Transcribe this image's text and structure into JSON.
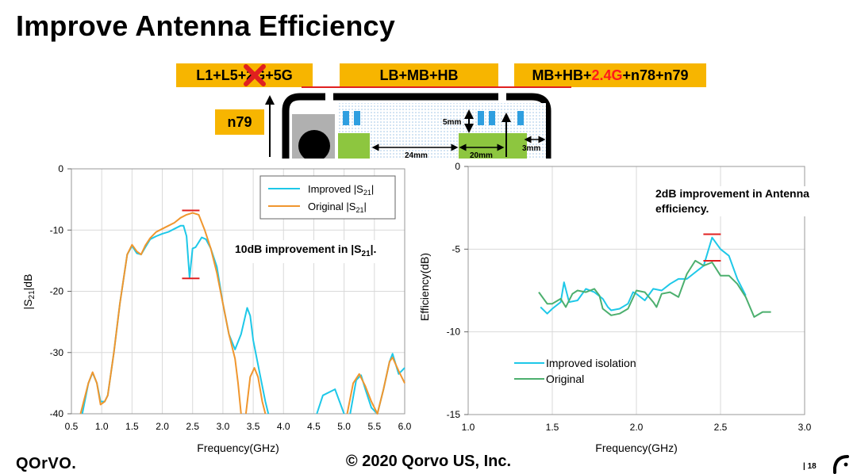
{
  "title": "Improve Antenna Efficiency",
  "bands": {
    "left_prefix": "L1+L5+2",
    "left_suffix": "G+5G",
    "center": "LB+MB+HB",
    "right_prefix": "MB+HB+",
    "right_highlight": "2.4G",
    "right_suffix": "+n78+n79",
    "n79": "n79"
  },
  "diagram": {
    "dim_5mm": "5mm",
    "dim_24mm": "24mm",
    "dim_20mm": "20mm",
    "dim_3mm": "3mm"
  },
  "colors": {
    "accent_yellow": "#f7b500",
    "improved": "#1ec8e8",
    "original_left": "#f0962e",
    "original_right": "#4caf6e",
    "marker_red": "#e02020",
    "component_green": "#8dc63f"
  },
  "notes": {
    "left_prefix": "10dB improvement in |S",
    "left_sub": "21",
    "left_suffix": "|.",
    "right": "2dB improvement in Antenna efficiency."
  },
  "chart_data": [
    {
      "type": "line",
      "title": "",
      "xlabel": "Frequency(GHz)",
      "ylabel_prefix": "|S",
      "ylabel_sub": "21",
      "ylabel_suffix": "|dB",
      "xlim": [
        0.5,
        6.0
      ],
      "ylim": [
        -40,
        0
      ],
      "xticks": [
        "0.5",
        "1.0",
        "1.5",
        "2.0",
        "2.5",
        "3.0",
        "3.5",
        "4.0",
        "4.5",
        "5.0",
        "5.5",
        "6.0"
      ],
      "yticks": [
        "0",
        "-10",
        "-20",
        "-30",
        "-40"
      ],
      "legend": [
        {
          "label_prefix": "Improved |S",
          "label_sub": "21",
          "label_suffix": "|"
        },
        {
          "label_prefix": "Original |S",
          "label_sub": "21",
          "label_suffix": "|"
        }
      ],
      "series": [
        {
          "name": "Improved |S21|",
          "color": "#1ec8e8",
          "segments": [
            [
              [
                0.68,
                -40
              ],
              [
                0.78,
                -35
              ],
              [
                0.85,
                -33.3
              ],
              [
                0.92,
                -35
              ],
              [
                0.98,
                -38
              ],
              [
                1.05,
                -38
              ],
              [
                1.1,
                -37
              ],
              [
                1.2,
                -30
              ],
              [
                1.3,
                -22
              ],
              [
                1.42,
                -14
              ],
              [
                1.5,
                -12.6
              ],
              [
                1.58,
                -13.8
              ],
              [
                1.65,
                -14
              ],
              [
                1.72,
                -12.8
              ],
              [
                1.8,
                -11.5
              ],
              [
                1.9,
                -11
              ],
              [
                2.0,
                -10.6
              ],
              [
                2.1,
                -10.3
              ],
              [
                2.2,
                -9.8
              ],
              [
                2.3,
                -9.3
              ],
              [
                2.35,
                -9.3
              ],
              [
                2.4,
                -11
              ],
              [
                2.45,
                -17.8
              ],
              [
                2.5,
                -13
              ],
              [
                2.55,
                -12.8
              ],
              [
                2.6,
                -12
              ],
              [
                2.65,
                -11.2
              ],
              [
                2.72,
                -11.5
              ],
              [
                2.8,
                -13
              ],
              [
                2.9,
                -16
              ],
              [
                3.0,
                -22
              ],
              [
                3.1,
                -27
              ],
              [
                3.2,
                -29.5
              ],
              [
                3.3,
                -27
              ],
              [
                3.4,
                -22.7
              ],
              [
                3.45,
                -24
              ],
              [
                3.5,
                -28
              ],
              [
                3.6,
                -33
              ],
              [
                3.7,
                -38
              ],
              [
                3.75,
                -40
              ]
            ],
            [
              [
                4.55,
                -40
              ],
              [
                4.65,
                -37
              ],
              [
                4.85,
                -36
              ],
              [
                5.0,
                -40
              ]
            ],
            [
              [
                5.1,
                -40
              ],
              [
                5.2,
                -34.5
              ],
              [
                5.28,
                -33.7
              ],
              [
                5.35,
                -36
              ],
              [
                5.45,
                -39
              ],
              [
                5.55,
                -40
              ],
              [
                5.65,
                -36
              ],
              [
                5.75,
                -31.5
              ],
              [
                5.8,
                -30.2
              ],
              [
                5.9,
                -33.5
              ],
              [
                5.95,
                -33
              ],
              [
                6.0,
                -32.5
              ]
            ]
          ]
        },
        {
          "name": "Original |S21|",
          "color": "#f0962e",
          "segments": [
            [
              [
                0.65,
                -40
              ],
              [
                0.78,
                -35
              ],
              [
                0.85,
                -33.2
              ],
              [
                0.92,
                -35
              ],
              [
                0.98,
                -38.5
              ],
              [
                1.05,
                -38
              ],
              [
                1.1,
                -37
              ],
              [
                1.2,
                -30
              ],
              [
                1.3,
                -22
              ],
              [
                1.42,
                -14
              ],
              [
                1.5,
                -12.4
              ],
              [
                1.58,
                -13.5
              ],
              [
                1.65,
                -14
              ],
              [
                1.72,
                -12.5
              ],
              [
                1.8,
                -11.3
              ],
              [
                1.9,
                -10.3
              ],
              [
                2.0,
                -9.8
              ],
              [
                2.1,
                -9.3
              ],
              [
                2.2,
                -8.8
              ],
              [
                2.3,
                -8
              ],
              [
                2.4,
                -7.5
              ],
              [
                2.5,
                -7.2
              ],
              [
                2.6,
                -7.5
              ],
              [
                2.7,
                -10
              ],
              [
                2.8,
                -13
              ],
              [
                2.9,
                -17
              ],
              [
                3.0,
                -22
              ],
              [
                3.1,
                -27
              ],
              [
                3.2,
                -31
              ],
              [
                3.25,
                -35
              ],
              [
                3.3,
                -40
              ]
            ],
            [
              [
                3.38,
                -40
              ],
              [
                3.45,
                -34
              ],
              [
                3.52,
                -32.5
              ],
              [
                3.58,
                -34
              ],
              [
                3.65,
                -38
              ],
              [
                3.7,
                -40
              ]
            ],
            [
              [
                5.05,
                -40
              ],
              [
                5.15,
                -35
              ],
              [
                5.25,
                -33.5
              ],
              [
                5.35,
                -35.5
              ],
              [
                5.45,
                -38
              ],
              [
                5.55,
                -40
              ],
              [
                5.65,
                -36
              ],
              [
                5.75,
                -31.5
              ],
              [
                5.8,
                -30.8
              ],
              [
                5.9,
                -33
              ],
              [
                6.0,
                -35
              ]
            ]
          ]
        }
      ],
      "markers": [
        [
          2.47,
          -6.8
        ],
        [
          2.47,
          -17.9
        ]
      ]
    },
    {
      "type": "line",
      "title": "",
      "xlabel": "Frequency(GHz)",
      "ylabel": "Efficiency(dB)",
      "xlim": [
        1.0,
        3.0
      ],
      "ylim": [
        -15,
        0
      ],
      "xticks": [
        "1.0",
        "1.5",
        "2.0",
        "2.5",
        "3.0"
      ],
      "yticks": [
        "0",
        "-5",
        "-10",
        "-15"
      ],
      "legend": [
        {
          "label": "Improved isolation"
        },
        {
          "label": "Original"
        }
      ],
      "series": [
        {
          "name": "Improved isolation",
          "color": "#1ec8e8",
          "points": [
            [
              1.43,
              -8.5
            ],
            [
              1.47,
              -8.9
            ],
            [
              1.5,
              -8.6
            ],
            [
              1.55,
              -8.2
            ],
            [
              1.57,
              -7.0
            ],
            [
              1.6,
              -8.2
            ],
            [
              1.65,
              -8.1
            ],
            [
              1.7,
              -7.4
            ],
            [
              1.75,
              -7.6
            ],
            [
              1.8,
              -8.0
            ],
            [
              1.83,
              -8.5
            ],
            [
              1.85,
              -8.7
            ],
            [
              1.9,
              -8.6
            ],
            [
              1.95,
              -8.3
            ],
            [
              1.98,
              -7.6
            ],
            [
              2.0,
              -7.7
            ],
            [
              2.05,
              -8.1
            ],
            [
              2.1,
              -7.4
            ],
            [
              2.15,
              -7.5
            ],
            [
              2.2,
              -7.1
            ],
            [
              2.25,
              -6.8
            ],
            [
              2.3,
              -6.8
            ],
            [
              2.35,
              -6.4
            ],
            [
              2.4,
              -6.0
            ],
            [
              2.45,
              -4.3
            ],
            [
              2.5,
              -5.0
            ],
            [
              2.55,
              -5.4
            ],
            [
              2.6,
              -6.8
            ],
            [
              2.65,
              -7.8
            ]
          ]
        },
        {
          "name": "Original",
          "color": "#4caf6e",
          "points": [
            [
              1.42,
              -7.6
            ],
            [
              1.47,
              -8.3
            ],
            [
              1.5,
              -8.3
            ],
            [
              1.55,
              -8.0
            ],
            [
              1.58,
              -8.5
            ],
            [
              1.62,
              -7.7
            ],
            [
              1.65,
              -7.5
            ],
            [
              1.7,
              -7.6
            ],
            [
              1.75,
              -7.4
            ],
            [
              1.78,
              -7.8
            ],
            [
              1.8,
              -8.6
            ],
            [
              1.85,
              -9.0
            ],
            [
              1.9,
              -8.9
            ],
            [
              1.95,
              -8.6
            ],
            [
              2.0,
              -7.5
            ],
            [
              2.05,
              -7.6
            ],
            [
              2.1,
              -8.2
            ],
            [
              2.12,
              -8.5
            ],
            [
              2.15,
              -7.7
            ],
            [
              2.2,
              -7.6
            ],
            [
              2.25,
              -7.9
            ],
            [
              2.3,
              -6.5
            ],
            [
              2.35,
              -5.7
            ],
            [
              2.4,
              -6.0
            ],
            [
              2.45,
              -5.8
            ],
            [
              2.5,
              -6.6
            ],
            [
              2.55,
              -6.6
            ],
            [
              2.6,
              -7.1
            ],
            [
              2.65,
              -7.9
            ],
            [
              2.7,
              -9.1
            ],
            [
              2.75,
              -8.8
            ],
            [
              2.8,
              -8.8
            ]
          ]
        }
      ],
      "markers": [
        [
          2.45,
          -4.1
        ],
        [
          2.45,
          -5.7
        ]
      ]
    }
  ],
  "footer": {
    "copyright": "© 2020 Qorvo US, Inc.",
    "logo": "QOrVO.",
    "page": "| 18"
  }
}
